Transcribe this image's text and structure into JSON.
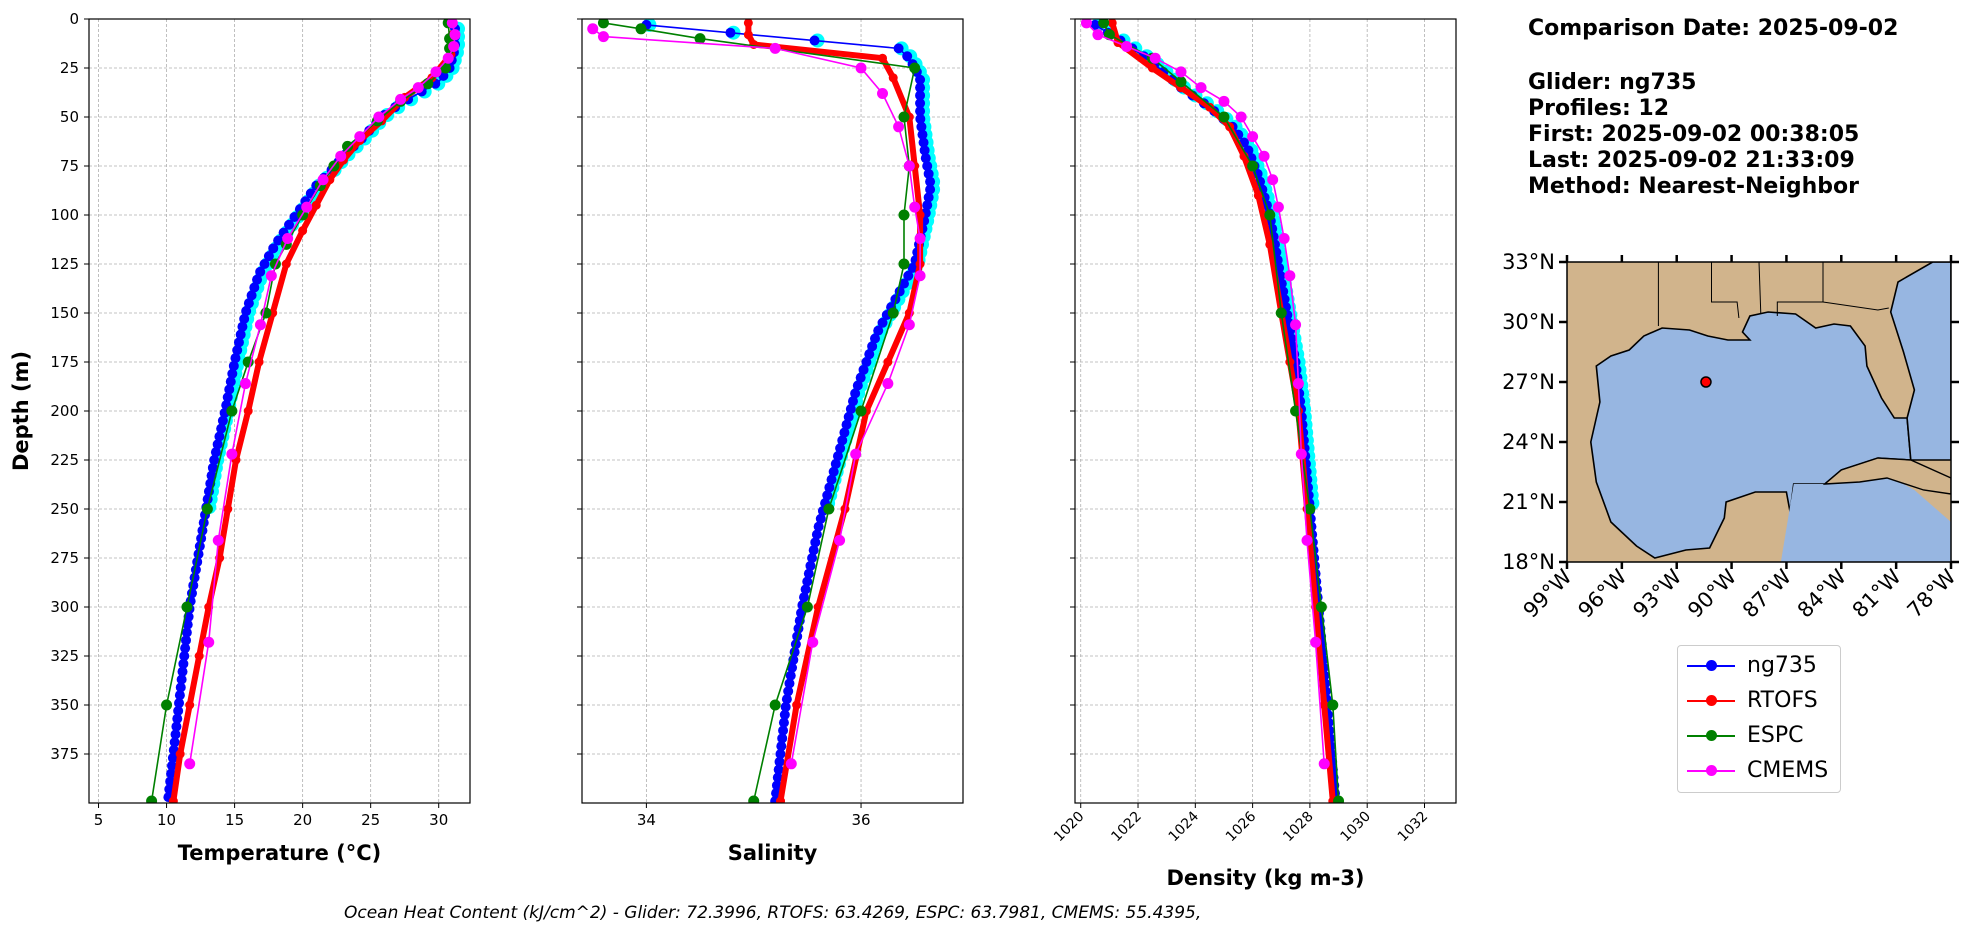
{
  "chart_data": [
    {
      "type": "line",
      "xlabel": "Temperature (°C)",
      "ylabel": "Depth (m)",
      "xlim": [
        4.3,
        32.3
      ],
      "ylim": [
        400,
        0
      ],
      "xticks": [
        5,
        10,
        15,
        20,
        25,
        30
      ],
      "yticks": [
        0,
        25,
        50,
        75,
        100,
        125,
        150,
        175,
        200,
        225,
        250,
        275,
        300,
        325,
        350,
        375
      ],
      "grid": true,
      "series": [
        {
          "name": "ng735",
          "color": "#0000ff",
          "points": [
            [
              31.2,
              5
            ],
            [
              31.2,
              15
            ],
            [
              30.8,
              25
            ],
            [
              30.0,
              32
            ],
            [
              28.5,
              38
            ],
            [
              27.0,
              44
            ],
            [
              25.8,
              50
            ],
            [
              24.5,
              60
            ],
            [
              23.0,
              70
            ],
            [
              22.0,
              78
            ],
            [
              21.0,
              85
            ],
            [
              20.0,
              95
            ],
            [
              19.0,
              105
            ],
            [
              18.0,
              115
            ],
            [
              16.8,
              130
            ],
            [
              15.8,
              150
            ],
            [
              15.0,
              175
            ],
            [
              14.3,
              200
            ],
            [
              13.5,
              225
            ],
            [
              12.9,
              250
            ],
            [
              12.3,
              275
            ],
            [
              11.7,
              300
            ],
            [
              11.3,
              325
            ],
            [
              10.9,
              350
            ],
            [
              10.5,
              375
            ],
            [
              10.1,
              399
            ]
          ]
        },
        {
          "name": "RTOFS",
          "color": "#ff0000",
          "points": [
            [
              31.0,
              8
            ],
            [
              30.9,
              18
            ],
            [
              29.5,
              30
            ],
            [
              27.5,
              40
            ],
            [
              25.8,
              52
            ],
            [
              24.2,
              62
            ],
            [
              23.0,
              72
            ],
            [
              22.0,
              82
            ],
            [
              21.0,
              95
            ],
            [
              20.0,
              108
            ],
            [
              18.8,
              125
            ],
            [
              17.8,
              150
            ],
            [
              16.8,
              175
            ],
            [
              16.0,
              200
            ],
            [
              15.1,
              225
            ],
            [
              14.5,
              250
            ],
            [
              13.9,
              275
            ],
            [
              13.1,
              300
            ],
            [
              12.4,
              325
            ],
            [
              11.7,
              350
            ],
            [
              11.0,
              375
            ],
            [
              10.5,
              399
            ]
          ]
        },
        {
          "name": "ESPC",
          "color": "#008000",
          "points": [
            [
              30.7,
              2
            ],
            [
              30.8,
              10
            ],
            [
              30.8,
              15
            ],
            [
              30.5,
              25
            ],
            [
              29.2,
              33
            ],
            [
              27.2,
              42
            ],
            [
              25.5,
              52
            ],
            [
              23.3,
              65
            ],
            [
              22.3,
              75
            ],
            [
              21.3,
              85
            ],
            [
              20.0,
              100
            ],
            [
              18.8,
              115
            ],
            [
              18.0,
              125
            ],
            [
              17.3,
              150
            ],
            [
              16.0,
              175
            ],
            [
              14.8,
              200
            ],
            [
              13.0,
              250
            ],
            [
              11.5,
              300
            ],
            [
              10.0,
              350
            ],
            [
              8.9,
              399
            ]
          ]
        },
        {
          "name": "CMEMS",
          "color": "#ff00ff",
          "points": [
            [
              31.0,
              2
            ],
            [
              31.2,
              8
            ],
            [
              31.1,
              14
            ],
            [
              30.7,
              20
            ],
            [
              29.8,
              27
            ],
            [
              28.5,
              35
            ],
            [
              27.2,
              41
            ],
            [
              25.6,
              50
            ],
            [
              24.2,
              60
            ],
            [
              22.8,
              70
            ],
            [
              21.5,
              82
            ],
            [
              20.3,
              96
            ],
            [
              18.9,
              112
            ],
            [
              17.7,
              131
            ],
            [
              16.9,
              156
            ],
            [
              15.8,
              186
            ],
            [
              14.8,
              222
            ],
            [
              13.8,
              266
            ],
            [
              13.1,
              318
            ],
            [
              11.7,
              380
            ]
          ]
        }
      ]
    },
    {
      "type": "line",
      "xlabel": "Salinity",
      "xlim": [
        33.4,
        36.95
      ],
      "ylim": [
        400,
        0
      ],
      "xticks": [
        34,
        36
      ],
      "yticks": [
        0,
        25,
        50,
        75,
        100,
        125,
        150,
        175,
        200,
        225,
        250,
        275,
        300,
        325,
        350,
        375
      ],
      "grid": true,
      "series": [
        {
          "name": "ng735",
          "color": "#0000ff",
          "points": [
            [
              34.0,
              3
            ],
            [
              36.35,
              15
            ],
            [
              36.45,
              20
            ],
            [
              36.55,
              30
            ],
            [
              36.55,
              50
            ],
            [
              36.6,
              70
            ],
            [
              36.65,
              85
            ],
            [
              36.6,
              100
            ],
            [
              36.5,
              125
            ],
            [
              36.35,
              140
            ],
            [
              36.15,
              160
            ],
            [
              35.95,
              190
            ],
            [
              35.8,
              220
            ],
            [
              35.6,
              260
            ],
            [
              35.45,
              300
            ],
            [
              35.3,
              350
            ],
            [
              35.2,
              399
            ]
          ]
        },
        {
          "name": "RTOFS",
          "color": "#ff0000",
          "points": [
            [
              34.95,
              2
            ],
            [
              34.95,
              8
            ],
            [
              35.0,
              13
            ],
            [
              36.2,
              20
            ],
            [
              36.3,
              30
            ],
            [
              36.45,
              50
            ],
            [
              36.5,
              75
            ],
            [
              36.55,
              100
            ],
            [
              36.55,
              125
            ],
            [
              36.45,
              150
            ],
            [
              36.25,
              175
            ],
            [
              36.05,
              200
            ],
            [
              35.85,
              250
            ],
            [
              35.6,
              300
            ],
            [
              35.4,
              350
            ],
            [
              35.25,
              399
            ]
          ]
        },
        {
          "name": "ESPC",
          "color": "#008000",
          "points": [
            [
              33.6,
              2
            ],
            [
              33.95,
              5
            ],
            [
              34.5,
              10
            ],
            [
              36.5,
              25
            ],
            [
              36.4,
              50
            ],
            [
              36.45,
              75
            ],
            [
              36.4,
              100
            ],
            [
              36.4,
              125
            ],
            [
              36.3,
              150
            ],
            [
              36.0,
              200
            ],
            [
              35.7,
              250
            ],
            [
              35.5,
              300
            ],
            [
              35.2,
              350
            ],
            [
              35.0,
              399
            ]
          ]
        },
        {
          "name": "CMEMS",
          "color": "#ff00ff",
          "points": [
            [
              33.5,
              5
            ],
            [
              33.6,
              9
            ],
            [
              35.2,
              15
            ],
            [
              36.0,
              25
            ],
            [
              36.2,
              38
            ],
            [
              36.35,
              55
            ],
            [
              36.45,
              75
            ],
            [
              36.5,
              96
            ],
            [
              36.55,
              112
            ],
            [
              36.55,
              131
            ],
            [
              36.45,
              156
            ],
            [
              36.25,
              186
            ],
            [
              35.95,
              222
            ],
            [
              35.8,
              266
            ],
            [
              35.55,
              318
            ],
            [
              35.35,
              380
            ]
          ]
        }
      ]
    },
    {
      "type": "line",
      "xlabel": "Density (kg m-3)",
      "xlim": [
        1019.8,
        1033.1
      ],
      "ylim": [
        400,
        0
      ],
      "xticks": [
        1020,
        1022,
        1024,
        1026,
        1028,
        1030,
        1032
      ],
      "yticks": [
        0,
        25,
        50,
        75,
        100,
        125,
        150,
        175,
        200,
        225,
        250,
        275,
        300,
        325,
        350,
        375
      ],
      "grid": true,
      "series": [
        {
          "name": "ng735",
          "color": "#0000ff",
          "points": [
            [
              1020.5,
              3
            ],
            [
              1021.5,
              12
            ],
            [
              1022.5,
              22
            ],
            [
              1023.5,
              35
            ],
            [
              1024.5,
              45
            ],
            [
              1025.3,
              55
            ],
            [
              1025.8,
              65
            ],
            [
              1026.2,
              80
            ],
            [
              1026.6,
              100
            ],
            [
              1026.9,
              125
            ],
            [
              1027.2,
              150
            ],
            [
              1027.5,
              175
            ],
            [
              1027.7,
              200
            ],
            [
              1028.0,
              250
            ],
            [
              1028.3,
              300
            ],
            [
              1028.6,
              350
            ],
            [
              1028.9,
              399
            ]
          ]
        },
        {
          "name": "RTOFS",
          "color": "#ff0000",
          "points": [
            [
              1021.1,
              2
            ],
            [
              1021.3,
              12
            ],
            [
              1022.5,
              25
            ],
            [
              1023.5,
              35
            ],
            [
              1024.5,
              45
            ],
            [
              1025.2,
              55
            ],
            [
              1025.7,
              70
            ],
            [
              1026.2,
              90
            ],
            [
              1026.6,
              115
            ],
            [
              1027.0,
              150
            ],
            [
              1027.3,
              175
            ],
            [
              1027.6,
              200
            ],
            [
              1027.9,
              250
            ],
            [
              1028.2,
              300
            ],
            [
              1028.5,
              350
            ],
            [
              1028.8,
              399
            ]
          ]
        },
        {
          "name": "ESPC",
          "color": "#008000",
          "points": [
            [
              1020.8,
              2
            ],
            [
              1021.0,
              8
            ],
            [
              1022.5,
              20
            ],
            [
              1023.5,
              32
            ],
            [
              1025.0,
              50
            ],
            [
              1026.0,
              75
            ],
            [
              1026.6,
              100
            ],
            [
              1027.0,
              150
            ],
            [
              1027.5,
              200
            ],
            [
              1028.0,
              250
            ],
            [
              1028.4,
              300
            ],
            [
              1028.8,
              350
            ],
            [
              1029.0,
              399
            ]
          ]
        },
        {
          "name": "CMEMS",
          "color": "#ff00ff",
          "points": [
            [
              1020.2,
              2
            ],
            [
              1020.6,
              8
            ],
            [
              1021.6,
              14
            ],
            [
              1022.6,
              20
            ],
            [
              1023.5,
              27
            ],
            [
              1024.2,
              35
            ],
            [
              1025.0,
              42
            ],
            [
              1025.6,
              50
            ],
            [
              1026.0,
              60
            ],
            [
              1026.4,
              70
            ],
            [
              1026.7,
              82
            ],
            [
              1026.9,
              96
            ],
            [
              1027.1,
              112
            ],
            [
              1027.3,
              131
            ],
            [
              1027.5,
              156
            ],
            [
              1027.6,
              186
            ],
            [
              1027.7,
              222
            ],
            [
              1027.9,
              266
            ],
            [
              1028.2,
              318
            ],
            [
              1028.5,
              380
            ]
          ]
        }
      ]
    }
  ],
  "info": {
    "comparison_date": "Comparison Date: 2025-09-02",
    "glider": "Glider: ng735",
    "profiles": "Profiles: 12",
    "first": "First: 2025-09-02 00:38:05",
    "last": "Last: 2025-09-02 21:33:09",
    "method": "Method: Nearest-Neighbor"
  },
  "map": {
    "lat_ticks": [
      "33°N",
      "30°N",
      "27°N",
      "24°N",
      "21°N",
      "18°N"
    ],
    "lon_ticks": [
      "99°W",
      "96°W",
      "93°W",
      "90°W",
      "87°W",
      "84°W",
      "81°W",
      "78°W"
    ],
    "glider_position": {
      "lon": -91.4,
      "lat": 27.0
    },
    "ocean_color": "#97b6e1",
    "land_color": "#d1b48c"
  },
  "legend": [
    {
      "label": "ng735",
      "color": "#0000ff"
    },
    {
      "label": "RTOFS",
      "color": "#ff0000"
    },
    {
      "label": "ESPC",
      "color": "#008000"
    },
    {
      "label": "CMEMS",
      "color": "#ff00ff"
    }
  ],
  "footer": "Ocean Heat Content (kJ/cm^2) - Glider: 72.3996,  RTOFS: 63.4269,  ESPC: 63.7981,  CMEMS: 55.4395,"
}
